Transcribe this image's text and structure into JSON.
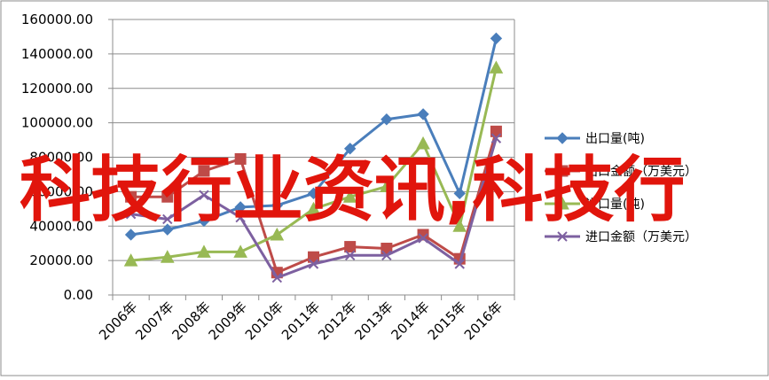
{
  "chart_data": {
    "type": "line",
    "categories": [
      "2006年",
      "2007年",
      "2008年",
      "2009年",
      "2010年",
      "2011年",
      "2012年",
      "2013年",
      "2014年",
      "2015年",
      "2016年"
    ],
    "ylim": [
      0,
      160000
    ],
    "yticks": [
      "0.00",
      "20000.00",
      "40000.00",
      "60000.00",
      "80000.00",
      "100000.00",
      "120000.00",
      "140000.00",
      "160000.00"
    ],
    "ytick_values": [
      0,
      20000,
      40000,
      60000,
      80000,
      100000,
      120000,
      140000,
      160000
    ],
    "grid": true,
    "legend_position": "right",
    "series": [
      {
        "name": "出口量(吨)",
        "color": "#4a7ebb",
        "marker": "diamond",
        "values": [
          35000,
          38000,
          43000,
          51000,
          52000,
          59000,
          85000,
          102000,
          105000,
          59000,
          149000
        ]
      },
      {
        "name": "出口金额（万美元）",
        "color": "#be4b48",
        "marker": "square",
        "values": [
          57000,
          57000,
          72000,
          79000,
          13000,
          22000,
          28000,
          27000,
          35000,
          21000,
          95000
        ]
      },
      {
        "name": "进口量(吨)",
        "color": "#98b954",
        "marker": "triangle",
        "values": [
          20000,
          22000,
          25000,
          25000,
          35000,
          50000,
          57000,
          63000,
          88000,
          40000,
          132000
        ]
      },
      {
        "name": "进口金额（万美元）",
        "color": "#7d60a0",
        "marker": "x",
        "values": [
          47000,
          44000,
          58000,
          45000,
          10000,
          18000,
          23000,
          23000,
          33000,
          18000,
          91000
        ]
      }
    ]
  },
  "overlay": {
    "text": "科技行业资讯,科技行"
  }
}
